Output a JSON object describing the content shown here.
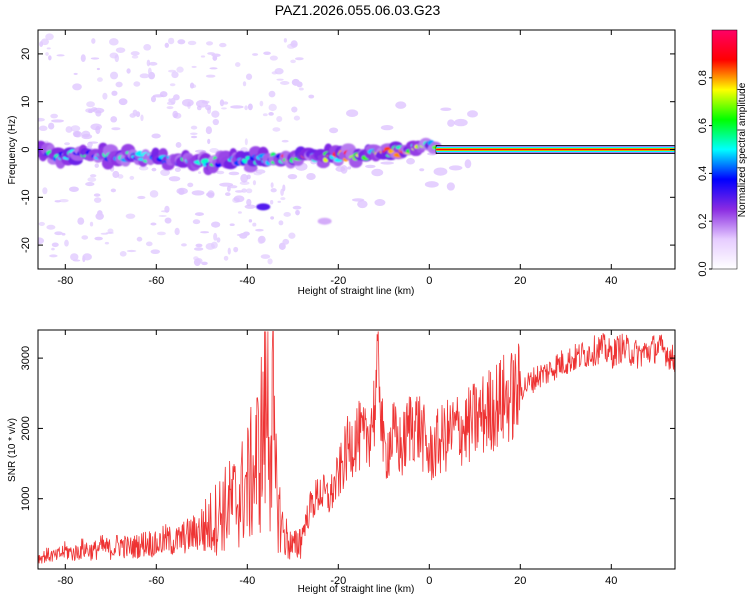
{
  "title": "PAZ1.2026.055.06.03.G23",
  "chart_data": [
    {
      "type": "heatmap",
      "xlabel": "Height of straight line (km)",
      "ylabel": "Frequency (Hz)",
      "xlim": [
        -86,
        54
      ],
      "ylim": [
        -25,
        25
      ],
      "xticks": [
        -80,
        -60,
        -40,
        -20,
        0,
        20,
        40
      ],
      "yticks": [
        -20,
        -10,
        0,
        10,
        20
      ],
      "grid": false,
      "colorbar": {
        "label": "Normalized spectral amplitude",
        "range": [
          0,
          1
        ],
        "ticks": [
          0.0,
          0.2,
          0.4,
          0.6,
          0.8
        ],
        "colors": [
          "#ffffff",
          "#e6ccff",
          "#8a2be2",
          "#0000ff",
          "#00ffff",
          "#00ff00",
          "#ffff00",
          "#ff0000",
          "#ff0066"
        ]
      },
      "ridge": [
        {
          "x": -85,
          "y": -1.5
        },
        {
          "x": -75,
          "y": -1.0
        },
        {
          "x": -65,
          "y": -1.5
        },
        {
          "x": -55,
          "y": -2.5
        },
        {
          "x": -45,
          "y": -2.5
        },
        {
          "x": -35,
          "y": -2.0
        },
        {
          "x": -28,
          "y": -1.5
        },
        {
          "x": -20,
          "y": -1.5
        },
        {
          "x": -12,
          "y": -0.8
        },
        {
          "x": -6,
          "y": -0.3
        },
        {
          "x": 0,
          "y": 0.8
        },
        {
          "x": 2,
          "y": 0.0
        },
        {
          "x": 54,
          "y": 0.0
        }
      ],
      "features": [
        {
          "x": -36.5,
          "y": -12.0,
          "amplitude": 0.3
        },
        {
          "x": -23.0,
          "y": -15.0,
          "amplitude": 0.15
        }
      ]
    },
    {
      "type": "line",
      "xlabel": "Height of straight line (km)",
      "ylabel": "SNR (10 * v/v)",
      "xlim": [
        -86,
        54
      ],
      "ylim": [
        0,
        3400
      ],
      "xticks": [
        -80,
        -60,
        -40,
        -20,
        0,
        20,
        40
      ],
      "yticks": [
        1000,
        2000,
        3000
      ],
      "grid": false,
      "series": [
        {
          "color": "#ee3333",
          "x": [
            -86,
            -84,
            -82,
            -80,
            -78,
            -76,
            -74,
            -72,
            -70,
            -68,
            -66,
            -64,
            -62,
            -60,
            -58,
            -56,
            -54,
            -52,
            -50,
            -48,
            -46,
            -44,
            -42,
            -40,
            -38,
            -37,
            -36,
            -35.5,
            -35,
            -34.5,
            -34,
            -33,
            -32,
            -31,
            -30,
            -29,
            -28,
            -26,
            -24,
            -22,
            -20,
            -18,
            -16,
            -14,
            -12,
            -11,
            -10,
            -8,
            -6,
            -4,
            -2,
            0,
            2,
            4,
            6,
            8,
            10,
            12,
            14,
            16,
            18,
            20,
            22,
            24,
            26,
            28,
            30,
            32,
            34,
            36,
            38,
            40,
            42,
            44,
            46,
            48,
            50,
            52,
            54
          ],
          "values": [
            150,
            200,
            180,
            260,
            220,
            300,
            250,
            320,
            280,
            350,
            300,
            330,
            380,
            340,
            420,
            380,
            450,
            500,
            560,
            650,
            800,
            900,
            1000,
            1200,
            1500,
            1800,
            2200,
            2600,
            1700,
            2750,
            1300,
            800,
            500,
            400,
            300,
            350,
            500,
            900,
            1100,
            1000,
            1300,
            1700,
            1900,
            1800,
            2300,
            2900,
            1600,
            1900,
            1700,
            2100,
            2000,
            1600,
            1800,
            1900,
            2000,
            2000,
            2100,
            2200,
            2300,
            2400,
            2450,
            2550,
            2650,
            2750,
            2800,
            2900,
            2950,
            3000,
            3050,
            3100,
            3150,
            3050,
            3150,
            3100,
            3050,
            3100,
            3150,
            3100,
            2950
          ]
        }
      ]
    }
  ]
}
